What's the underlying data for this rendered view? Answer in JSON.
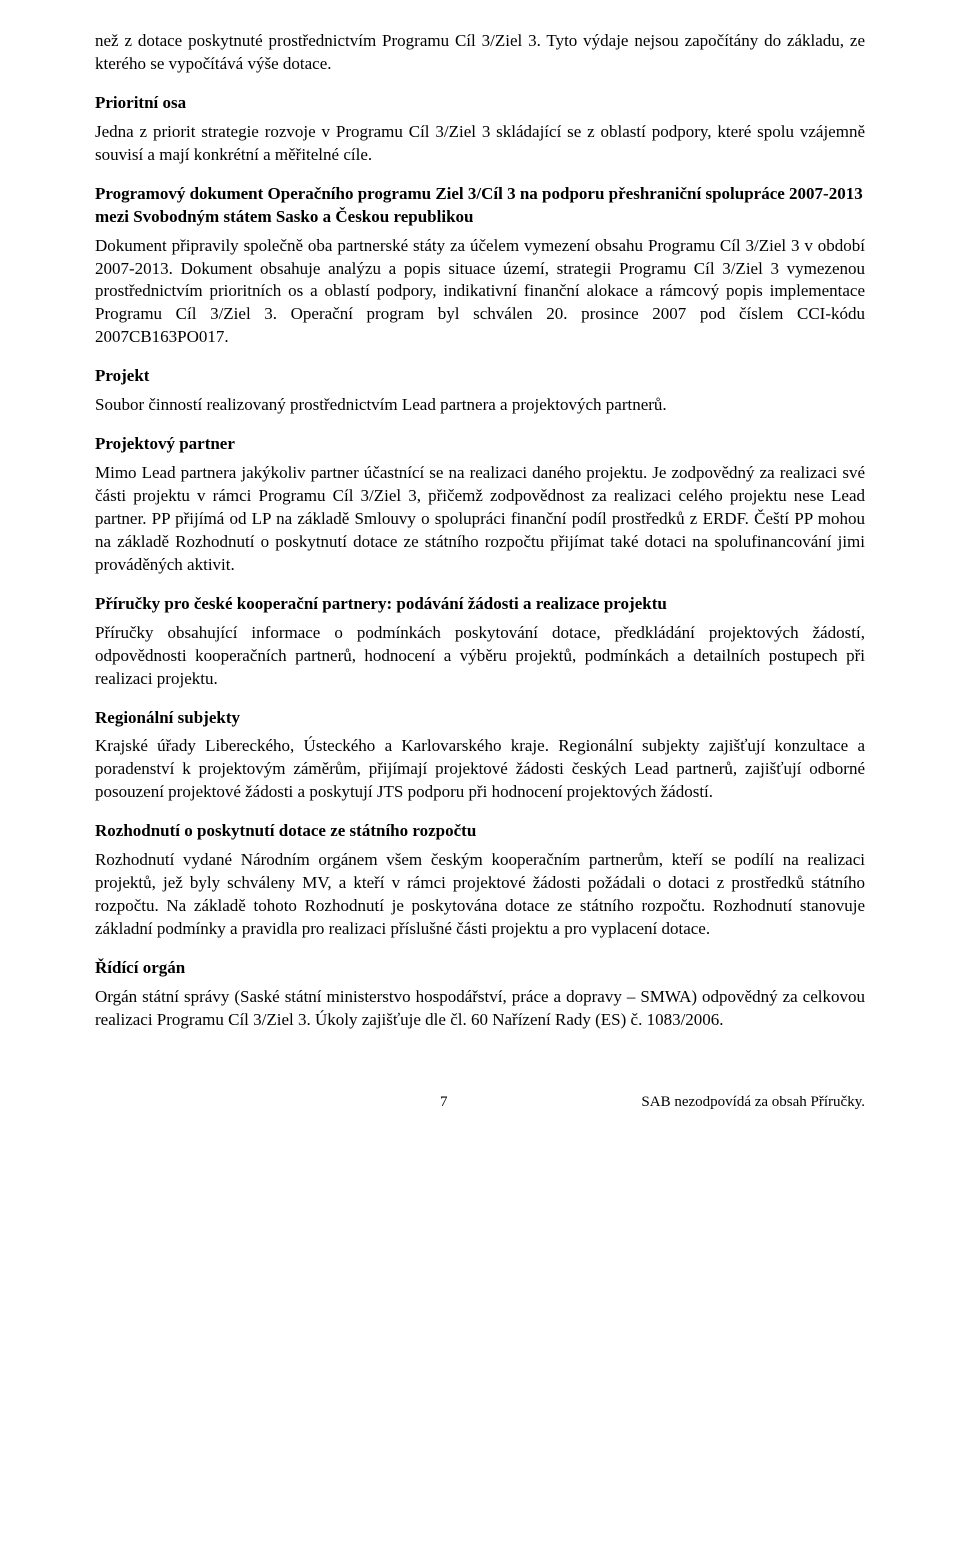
{
  "intro_cont": "než z dotace poskytnuté prostřednictvím Programu Cíl 3/Ziel 3. Tyto výdaje nejsou započítány do základu, ze kterého se vypočítává výše dotace.",
  "sections": {
    "prioritni_osa": {
      "title": "Prioritní osa",
      "body": "Jedna z priorit strategie rozvoje v Programu Cíl 3/Ziel 3 skládající se z oblastí podpory, které spolu vzájemně souvisí a mají konkrétní a měřitelné cíle."
    },
    "programovy_dokument": {
      "title": "Programový dokument Operačního programu Ziel 3/Cíl 3 na podporu přeshraniční spolupráce 2007-2013 mezi Svobodným státem Sasko a Českou republikou",
      "body": "Dokument připravily společně oba partnerské státy za účelem vymezení obsahu Programu Cíl 3/Ziel 3 v období 2007-2013. Dokument obsahuje analýzu a popis situace území, strategii Programu Cíl 3/Ziel 3 vymezenou prostřednictvím prioritních os a oblastí podpory, indikativní finanční alokace a rámcový popis implementace Programu Cíl 3/Ziel 3. Operační program byl schválen 20. prosince 2007 pod číslem CCI-kódu 2007CB163PO017."
    },
    "projekt": {
      "title": "Projekt",
      "body": "Soubor činností realizovaný prostřednictvím Lead partnera a projektových partnerů."
    },
    "projektovy_partner": {
      "title": "Projektový partner",
      "body": "Mimo Lead partnera jakýkoliv partner účastnící se na realizaci daného projektu. Je zodpovědný za realizaci své části projektu v rámci Programu Cíl 3/Ziel 3, přičemž zodpovědnost za realizaci celého projektu nese Lead partner. PP přijímá od LP na základě Smlouvy o spolupráci finanční podíl prostředků z ERDF. Čeští PP mohou na základě Rozhodnutí o poskytnutí dotace ze státního rozpočtu přijímat také dotaci na spolufinancování jimi prováděných aktivit."
    },
    "prirucky": {
      "title": "Příručky pro české kooperační partnery: podávání žádosti a realizace projektu",
      "body": "Příručky obsahující informace o podmínkách poskytování dotace, předkládání projektových žádostí, odpovědnosti kooperačních partnerů, hodnocení a výběru projektů, podmínkách a detailních postupech při realizaci projektu."
    },
    "regionalni_subjekty": {
      "title": "Regionální subjekty",
      "body": "Krajské úřady Libereckého, Ústeckého a Karlovarského kraje. Regionální subjekty zajišťují konzultace a poradenství k projektovým záměrům, přijímají projektové žádosti českých Lead partnerů, zajišťují odborné posouzení projektové žádosti a poskytují JTS podporu při hodnocení projektových žádostí."
    },
    "rozhodnuti": {
      "title": "Rozhodnutí o poskytnutí dotace ze státního rozpočtu",
      "body": "Rozhodnutí vydané Národním orgánem všem českým kooperačním partnerům, kteří se podílí na realizaci projektů, jež byly schváleny MV, a kteří v rámci projektové žádosti požádali o dotaci z prostředků státního rozpočtu. Na základě tohoto Rozhodnutí je poskytována dotace ze státního rozpočtu. Rozhodnutí stanovuje základní podmínky a pravidla pro realizaci příslušné části projektu a pro vyplacení dotace."
    },
    "ridici_organ": {
      "title": "Řídící orgán",
      "body": "Orgán státní správy (Saské státní ministerstvo hospodářství, práce a dopravy – SMWA) odpovědný za celkovou realizaci Programu Cíl 3/Ziel 3. Úkoly zajišťuje dle čl. 60 Nařízení Rady (ES) č. 1083/2006."
    }
  },
  "footer": {
    "page": "7",
    "note": "SAB nezodpovídá za obsah Příručky."
  }
}
